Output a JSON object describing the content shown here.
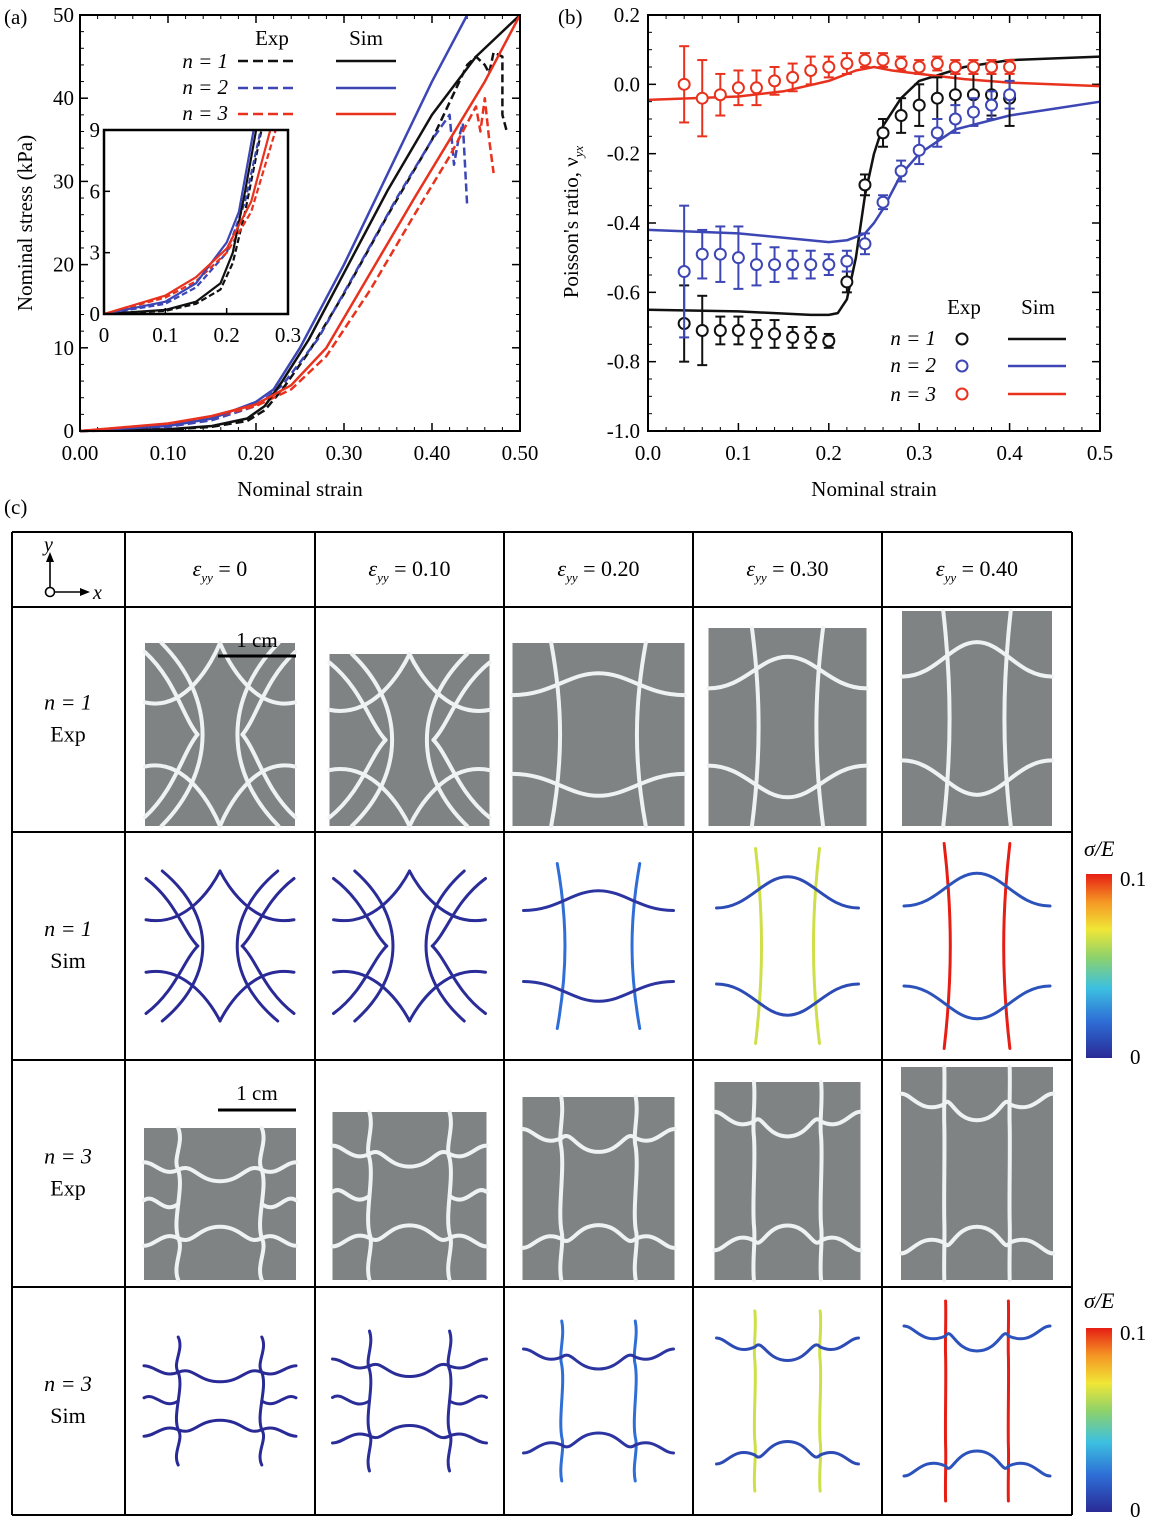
{
  "panel_labels": {
    "a": "(a)",
    "b": "(b)",
    "c": "(c)"
  },
  "colors": {
    "n1": "#111111",
    "n2": "#3c46b4",
    "n3": "#e8321e",
    "photo_bg": "#7f8383",
    "photo_line": "#eef2f2",
    "sim_blue": "#3a4aa8"
  },
  "chart_data": [
    {
      "id": "a",
      "type": "line",
      "xlabel": "Nominal strain",
      "ylabel": "Nominal stress (kPa)",
      "xlim": [
        0,
        0.5
      ],
      "ylim": [
        0,
        50
      ],
      "xticks": [
        "0.00",
        "0.10",
        "0.20",
        "0.30",
        "0.40",
        "0.50"
      ],
      "yticks": [
        "0",
        "10",
        "20",
        "30",
        "40",
        "50"
      ],
      "legend": {
        "placement": "top-center",
        "col_headers": [
          "Exp",
          "Sim"
        ],
        "rows": [
          "n = 1",
          "n = 2",
          "n = 3"
        ]
      },
      "series": [
        {
          "name": "n = 1",
          "kind": "Exp",
          "color": "#111111",
          "points": [
            [
              0,
              0
            ],
            [
              0.1,
              0.15
            ],
            [
              0.15,
              0.5
            ],
            [
              0.19,
              1.2
            ],
            [
              0.21,
              2.5
            ],
            [
              0.23,
              5
            ],
            [
              0.26,
              9.5
            ],
            [
              0.3,
              16.5
            ],
            [
              0.35,
              26
            ],
            [
              0.4,
              35
            ],
            [
              0.44,
              44
            ],
            [
              0.45,
              45
            ],
            [
              0.46,
              44
            ],
            [
              0.465,
              43
            ],
            [
              0.47,
              45.5
            ],
            [
              0.48,
              45
            ],
            [
              0.48,
              38
            ],
            [
              0.485,
              36
            ]
          ]
        },
        {
          "name": "n = 2",
          "kind": "Exp",
          "color": "#3c46b4",
          "points": [
            [
              0,
              0
            ],
            [
              0.1,
              0.5
            ],
            [
              0.15,
              1.3
            ],
            [
              0.2,
              3
            ],
            [
              0.23,
              5.5
            ],
            [
              0.27,
              11
            ],
            [
              0.31,
              18.5
            ],
            [
              0.36,
              28
            ],
            [
              0.4,
              35
            ],
            [
              0.42,
              38
            ],
            [
              0.425,
              32
            ],
            [
              0.43,
              35
            ],
            [
              0.435,
              37
            ],
            [
              0.44,
              27
            ]
          ]
        },
        {
          "name": "n = 3",
          "kind": "Exp",
          "color": "#e8321e",
          "points": [
            [
              0,
              0
            ],
            [
              0.1,
              0.8
            ],
            [
              0.15,
              1.6
            ],
            [
              0.2,
              3
            ],
            [
              0.24,
              5
            ],
            [
              0.28,
              9
            ],
            [
              0.33,
              17
            ],
            [
              0.38,
              26
            ],
            [
              0.42,
              33
            ],
            [
              0.45,
              39
            ],
            [
              0.455,
              36
            ],
            [
              0.46,
              40
            ],
            [
              0.465,
              35
            ],
            [
              0.47,
              31
            ]
          ]
        },
        {
          "name": "n = 1",
          "kind": "Sim",
          "color": "#111111",
          "points": [
            [
              0,
              0
            ],
            [
              0.1,
              0.2
            ],
            [
              0.15,
              0.6
            ],
            [
              0.19,
              1.5
            ],
            [
              0.21,
              3
            ],
            [
              0.23,
              6
            ],
            [
              0.26,
              11
            ],
            [
              0.3,
              19
            ],
            [
              0.35,
              29
            ],
            [
              0.4,
              38
            ],
            [
              0.45,
              45
            ],
            [
              0.48,
              48
            ],
            [
              0.5,
              50
            ]
          ]
        },
        {
          "name": "n = 2",
          "kind": "Sim",
          "color": "#3c46b4",
          "points": [
            [
              0,
              0
            ],
            [
              0.1,
              0.6
            ],
            [
              0.15,
              1.5
            ],
            [
              0.2,
              3.5
            ],
            [
              0.22,
              5
            ],
            [
              0.25,
              10
            ],
            [
              0.3,
              20
            ],
            [
              0.35,
              31
            ],
            [
              0.4,
              42
            ],
            [
              0.44,
              50
            ]
          ]
        },
        {
          "name": "n = 3",
          "kind": "Sim",
          "color": "#e8321e",
          "points": [
            [
              0,
              0
            ],
            [
              0.1,
              0.9
            ],
            [
              0.15,
              1.8
            ],
            [
              0.2,
              3.2
            ],
            [
              0.24,
              5.5
            ],
            [
              0.28,
              10
            ],
            [
              0.33,
              19
            ],
            [
              0.38,
              28
            ],
            [
              0.42,
              35
            ],
            [
              0.46,
              42
            ],
            [
              0.5,
              50
            ]
          ]
        }
      ],
      "inset": {
        "xlim": [
          0,
          0.3
        ],
        "ylim": [
          0,
          9
        ],
        "xticks": [
          "0",
          "0.1",
          "0.2",
          "0.3"
        ],
        "yticks": [
          "0",
          "3",
          "6",
          "9"
        ]
      }
    },
    {
      "id": "b",
      "type": "scatter",
      "xlabel": "Nominal strain",
      "ylabel": "Poisson's ratio, ν",
      "ylabel_sub": "yx",
      "xlim": [
        0,
        0.5
      ],
      "ylim": [
        -1.0,
        0.2
      ],
      "xticks": [
        "0.0",
        "0.1",
        "0.2",
        "0.3",
        "0.4",
        "0.5"
      ],
      "yticks": [
        "0.2",
        "0.0",
        "-0.2",
        "-0.4",
        "-0.6",
        "-0.8",
        "-1.0"
      ],
      "legend": {
        "placement": "bottom-right",
        "col_headers": [
          "Exp",
          "Sim"
        ],
        "rows": [
          "n = 1",
          "n = 2",
          "n = 3"
        ]
      },
      "series": [
        {
          "name": "n = 1",
          "kind": "Exp",
          "color": "#111111",
          "x": [
            0.04,
            0.06,
            0.08,
            0.1,
            0.12,
            0.14,
            0.16,
            0.18,
            0.2,
            0.22,
            0.24,
            0.26,
            0.28,
            0.3,
            0.32,
            0.34,
            0.36,
            0.38,
            0.4
          ],
          "y": [
            -0.69,
            -0.71,
            -0.71,
            -0.71,
            -0.72,
            -0.72,
            -0.73,
            -0.73,
            -0.74,
            -0.57,
            -0.29,
            -0.14,
            -0.09,
            -0.06,
            -0.04,
            -0.03,
            -0.03,
            -0.03,
            -0.04
          ],
          "err": [
            0.11,
            0.1,
            0.04,
            0.04,
            0.04,
            0.04,
            0.03,
            0.03,
            0.02,
            0.03,
            0.03,
            0.04,
            0.05,
            0.06,
            0.06,
            0.06,
            0.06,
            0.06,
            0.08
          ]
        },
        {
          "name": "n = 2",
          "kind": "Exp",
          "color": "#3c46b4",
          "x": [
            0.04,
            0.06,
            0.08,
            0.1,
            0.12,
            0.14,
            0.16,
            0.18,
            0.2,
            0.22,
            0.24,
            0.26,
            0.28,
            0.3,
            0.32,
            0.34,
            0.36,
            0.38,
            0.4
          ],
          "y": [
            -0.54,
            -0.49,
            -0.49,
            -0.5,
            -0.52,
            -0.52,
            -0.52,
            -0.52,
            -0.52,
            -0.51,
            -0.46,
            -0.34,
            -0.25,
            -0.19,
            -0.14,
            -0.1,
            -0.08,
            -0.06,
            -0.03
          ],
          "err": [
            0.19,
            0.07,
            0.08,
            0.09,
            0.06,
            0.05,
            0.04,
            0.04,
            0.03,
            0.03,
            0.03,
            0.02,
            0.03,
            0.04,
            0.04,
            0.04,
            0.04,
            0.04,
            0.04
          ]
        },
        {
          "name": "n = 3",
          "kind": "Exp",
          "color": "#e8321e",
          "x": [
            0.04,
            0.06,
            0.08,
            0.1,
            0.12,
            0.14,
            0.16,
            0.18,
            0.2,
            0.22,
            0.24,
            0.26,
            0.28,
            0.3,
            0.32,
            0.34,
            0.36,
            0.38,
            0.4
          ],
          "y": [
            0.0,
            -0.04,
            -0.03,
            -0.01,
            -0.01,
            0.01,
            0.02,
            0.04,
            0.05,
            0.06,
            0.07,
            0.07,
            0.06,
            0.05,
            0.06,
            0.05,
            0.05,
            0.05,
            0.05
          ],
          "err": [
            0.11,
            0.11,
            0.06,
            0.05,
            0.05,
            0.04,
            0.04,
            0.04,
            0.03,
            0.03,
            0.02,
            0.02,
            0.02,
            0.02,
            0.02,
            0.02,
            0.02,
            0.02,
            0.02
          ]
        },
        {
          "name": "n = 1",
          "kind": "Sim",
          "color": "#111111",
          "points": [
            [
              0,
              -0.65
            ],
            [
              0.1,
              -0.655
            ],
            [
              0.18,
              -0.665
            ],
            [
              0.2,
              -0.665
            ],
            [
              0.21,
              -0.66
            ],
            [
              0.22,
              -0.62
            ],
            [
              0.23,
              -0.5
            ],
            [
              0.24,
              -0.32
            ],
            [
              0.25,
              -0.2
            ],
            [
              0.26,
              -0.12
            ],
            [
              0.28,
              -0.04
            ],
            [
              0.3,
              0.01
            ],
            [
              0.35,
              0.05
            ],
            [
              0.4,
              0.07
            ],
            [
              0.5,
              0.08
            ]
          ]
        },
        {
          "name": "n = 2",
          "kind": "Sim",
          "color": "#3c46b4",
          "points": [
            [
              0,
              -0.42
            ],
            [
              0.1,
              -0.43
            ],
            [
              0.2,
              -0.455
            ],
            [
              0.22,
              -0.45
            ],
            [
              0.23,
              -0.44
            ],
            [
              0.24,
              -0.43
            ],
            [
              0.25,
              -0.4
            ],
            [
              0.26,
              -0.36
            ],
            [
              0.28,
              -0.26
            ],
            [
              0.3,
              -0.2
            ],
            [
              0.34,
              -0.13
            ],
            [
              0.4,
              -0.09
            ],
            [
              0.45,
              -0.07
            ],
            [
              0.5,
              -0.05
            ]
          ]
        },
        {
          "name": "n = 3",
          "kind": "Sim",
          "color": "#e8321e",
          "points": [
            [
              0,
              -0.045
            ],
            [
              0.1,
              -0.035
            ],
            [
              0.15,
              -0.02
            ],
            [
              0.2,
              0.01
            ],
            [
              0.23,
              0.04
            ],
            [
              0.25,
              0.05
            ],
            [
              0.27,
              0.04
            ],
            [
              0.3,
              0.03
            ],
            [
              0.35,
              0.015
            ],
            [
              0.4,
              0.005
            ],
            [
              0.5,
              -0.005
            ]
          ]
        }
      ]
    }
  ],
  "grid": {
    "axes": {
      "y": "y",
      "x": "x"
    },
    "strain_symbol": "ε",
    "strain_sub": "yy",
    "columns": [
      "= 0",
      "= 0.10",
      "= 0.20",
      "= 0.30",
      "= 0.40"
    ],
    "rows": [
      {
        "line1": "n = 1",
        "line2": "Exp"
      },
      {
        "line1": "n = 1",
        "line2": "Sim"
      },
      {
        "line1": "n = 3",
        "line2": "Exp"
      },
      {
        "line1": "n = 3",
        "line2": "Sim"
      }
    ],
    "scale_bar": "1 cm",
    "colorbar": {
      "label": "σ/E",
      "max": "0.1",
      "min": "0"
    }
  }
}
